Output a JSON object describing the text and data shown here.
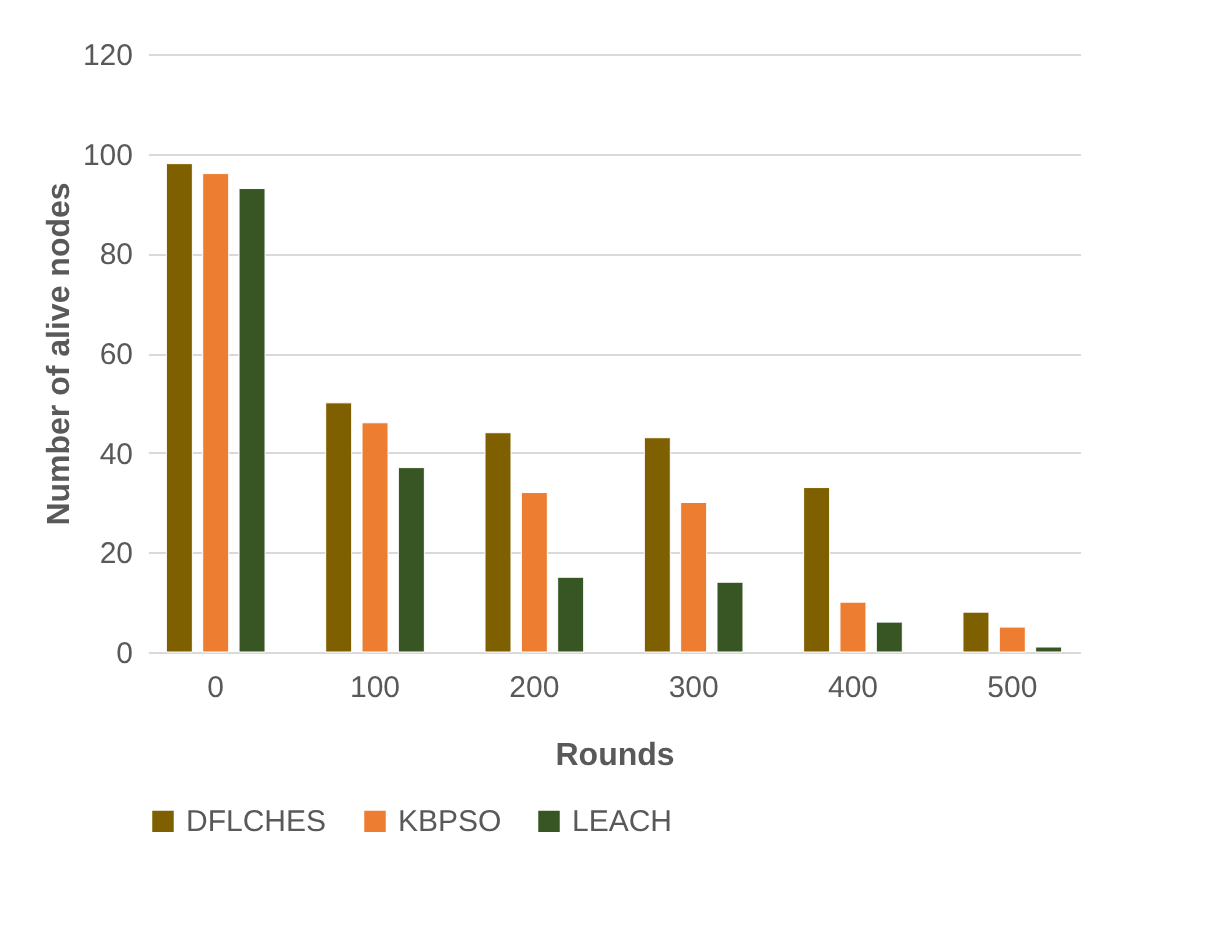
{
  "chart_data": {
    "type": "bar",
    "xlabel": "Rounds",
    "ylabel": "Number of alive nodes",
    "categories": [
      "0",
      "100",
      "200",
      "300",
      "400",
      "500"
    ],
    "series": [
      {
        "name": "DFLCHES",
        "color": "#7f6000",
        "values": [
          98,
          50,
          44,
          43,
          33,
          8
        ]
      },
      {
        "name": "KBPSO",
        "color": "#ed7d31",
        "values": [
          96,
          46,
          32,
          30,
          10,
          5
        ]
      },
      {
        "name": "LEACH",
        "color": "#375623",
        "values": [
          93,
          37,
          15,
          14,
          6,
          1
        ]
      }
    ],
    "ylim": [
      0,
      120
    ],
    "yticks": [
      0,
      20,
      40,
      60,
      80,
      100,
      120
    ],
    "grid": "y",
    "legend": "bottom"
  }
}
